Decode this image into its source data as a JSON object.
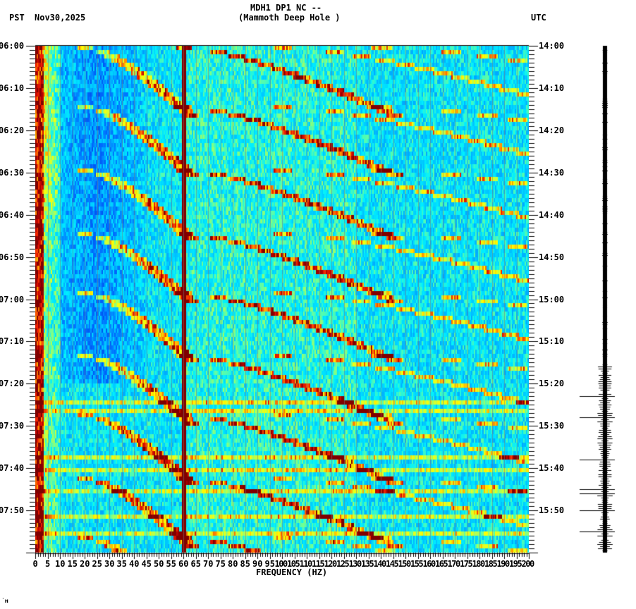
{
  "header": {
    "station_line": "MDH1 DP1 NC --",
    "station_name": "(Mammoth Deep Hole )",
    "left_timezone": "PST",
    "date": "Nov30,2025",
    "right_timezone": "UTC"
  },
  "footer_mark": "˙ʜ",
  "chart_data": {
    "type": "heatmap",
    "title": "MDH1 DP1 NC -- (Mammoth Deep Hole )",
    "subtitle": "Nov30,2025",
    "xlabel": "FREQUENCY (HZ)",
    "ylabel_left": "PST",
    "ylabel_right": "UTC",
    "xlim": [
      0,
      200
    ],
    "x_ticks": [
      0,
      5,
      10,
      15,
      20,
      25,
      30,
      35,
      40,
      45,
      50,
      55,
      60,
      65,
      70,
      75,
      80,
      85,
      90,
      95,
      100,
      105,
      110,
      115,
      120,
      125,
      130,
      135,
      140,
      145,
      150,
      155,
      160,
      165,
      170,
      175,
      180,
      185,
      190,
      195,
      200
    ],
    "y_ticks_left": [
      "06:00",
      "06:10",
      "06:20",
      "06:30",
      "06:40",
      "06:50",
      "07:00",
      "07:10",
      "07:20",
      "07:30",
      "07:40",
      "07:50"
    ],
    "y_ticks_right": [
      "14:00",
      "14:10",
      "14:20",
      "14:30",
      "14:40",
      "14:50",
      "15:00",
      "15:10",
      "15:20",
      "15:30",
      "15:40",
      "15:50"
    ],
    "time_span_minutes": 120,
    "colormap": [
      "#0000a0",
      "#0050ff",
      "#00a0ff",
      "#00f0ff",
      "#60ff90",
      "#d0ff30",
      "#ffff00",
      "#ffa000",
      "#ff3000",
      "#c00000",
      "#800000"
    ],
    "features": {
      "persistent_line_hz": 60,
      "low_freq_energy_hz": [
        0,
        10
      ],
      "chirp_sweeps_start_minutes": [
        0,
        14,
        29,
        44,
        58,
        73,
        87,
        102,
        116
      ],
      "broadband_bands_minutes": [
        84,
        86,
        97,
        100,
        105,
        111,
        115
      ]
    },
    "seismogram": {
      "position": "right",
      "spike_minutes": [
        83,
        88,
        98,
        105,
        106,
        110,
        115
      ]
    }
  }
}
